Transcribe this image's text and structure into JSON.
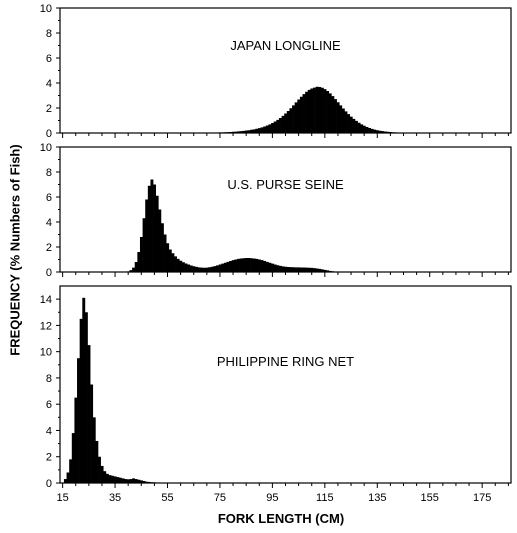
{
  "chart_data": {
    "type": "bar",
    "xlabel": "FORK LENGTH (CM)",
    "ylabel": "FREQUENCY (% Numbers of Fish)",
    "x_ticks": [
      15,
      35,
      55,
      75,
      95,
      115,
      135,
      155,
      175
    ],
    "x_tick_labels": [
      "15",
      "35",
      "55",
      "75",
      "95",
      "115",
      "135",
      "155",
      "175"
    ],
    "xlim": [
      14,
      186
    ],
    "bin_width_cm": 1,
    "panels": [
      {
        "title": "JAPAN LONGLINE",
        "ylim": [
          0,
          10
        ],
        "y_ticks": [
          0,
          2,
          4,
          6,
          8,
          10
        ],
        "y_tick_labels": [
          "0",
          "2",
          "4",
          "6",
          "8",
          "10"
        ],
        "x": [
          70,
          71,
          72,
          73,
          74,
          75,
          76,
          77,
          78,
          79,
          80,
          81,
          82,
          83,
          84,
          85,
          86,
          87,
          88,
          89,
          90,
          91,
          92,
          93,
          94,
          95,
          96,
          97,
          98,
          99,
          100,
          101,
          102,
          103,
          104,
          105,
          106,
          107,
          108,
          109,
          110,
          111,
          112,
          113,
          114,
          115,
          116,
          117,
          118,
          119,
          120,
          121,
          122,
          123,
          124,
          125,
          126,
          127,
          128,
          129,
          130,
          131,
          132,
          133,
          134,
          135,
          136,
          137,
          138,
          139,
          140,
          141,
          142,
          143,
          144,
          145,
          146,
          147,
          148,
          149,
          150,
          151,
          152,
          153,
          154,
          155,
          156,
          157,
          158,
          159,
          160
        ],
        "values": [
          0.02,
          0.02,
          0.03,
          0.03,
          0.04,
          0.05,
          0.05,
          0.06,
          0.07,
          0.08,
          0.1,
          0.11,
          0.13,
          0.15,
          0.17,
          0.2,
          0.22,
          0.26,
          0.29,
          0.34,
          0.39,
          0.45,
          0.52,
          0.6,
          0.69,
          0.8,
          0.92,
          1.05,
          1.2,
          1.37,
          1.56,
          1.76,
          1.98,
          2.21,
          2.45,
          2.68,
          2.9,
          3.11,
          3.3,
          3.45,
          3.56,
          3.63,
          3.7,
          3.68,
          3.62,
          3.51,
          3.36,
          3.17,
          2.95,
          2.71,
          2.46,
          2.21,
          1.96,
          1.73,
          1.51,
          1.31,
          1.13,
          0.97,
          0.82,
          0.69,
          0.58,
          0.48,
          0.4,
          0.33,
          0.27,
          0.22,
          0.18,
          0.15,
          0.12,
          0.1,
          0.08,
          0.06,
          0.05,
          0.04,
          0.03,
          0.03,
          0.02,
          0.02,
          0.02,
          0.01,
          0.01,
          0.01,
          0.01,
          0.01,
          0.01,
          0.01,
          0.01,
          0.01,
          0.01,
          0.01,
          0.01
        ]
      },
      {
        "title": "U.S. PURSE SEINE",
        "ylim": [
          0,
          10
        ],
        "y_ticks": [
          0,
          2,
          4,
          6,
          8,
          10
        ],
        "y_tick_labels": [
          "0",
          "2",
          "4",
          "6",
          "8",
          "10"
        ],
        "x": [
          40,
          41,
          42,
          43,
          44,
          45,
          46,
          47,
          48,
          49,
          50,
          51,
          52,
          53,
          54,
          55,
          56,
          57,
          58,
          59,
          60,
          61,
          62,
          63,
          64,
          65,
          66,
          67,
          68,
          69,
          70,
          71,
          72,
          73,
          74,
          75,
          76,
          77,
          78,
          79,
          80,
          81,
          82,
          83,
          84,
          85,
          86,
          87,
          88,
          89,
          90,
          91,
          92,
          93,
          94,
          95,
          96,
          97,
          98,
          99,
          100,
          101,
          102,
          103,
          104,
          105,
          106,
          107,
          108,
          109,
          110,
          111,
          112,
          113,
          114,
          115,
          116,
          117,
          118,
          119,
          120,
          121,
          122,
          123,
          124,
          125,
          126,
          127,
          128,
          129,
          130
        ],
        "values": [
          0.05,
          0.15,
          0.35,
          0.8,
          1.6,
          2.8,
          4.3,
          5.8,
          6.9,
          7.4,
          7.0,
          6.1,
          5.0,
          3.9,
          3.0,
          2.3,
          1.8,
          1.5,
          1.25,
          1.05,
          0.9,
          0.78,
          0.68,
          0.6,
          0.52,
          0.46,
          0.41,
          0.37,
          0.35,
          0.34,
          0.35,
          0.38,
          0.42,
          0.47,
          0.53,
          0.6,
          0.67,
          0.74,
          0.81,
          0.88,
          0.95,
          1.0,
          1.05,
          1.08,
          1.1,
          1.12,
          1.12,
          1.1,
          1.08,
          1.05,
          1.0,
          0.95,
          0.88,
          0.81,
          0.74,
          0.67,
          0.6,
          0.54,
          0.49,
          0.45,
          0.42,
          0.4,
          0.39,
          0.38,
          0.37,
          0.37,
          0.36,
          0.36,
          0.35,
          0.34,
          0.33,
          0.31,
          0.28,
          0.25,
          0.21,
          0.17,
          0.13,
          0.09,
          0.06,
          0.04,
          0.03,
          0.02,
          0.02,
          0.01,
          0.01,
          0.01,
          0.01,
          0.01,
          0.01,
          0.01,
          0.01
        ]
      },
      {
        "title": "PHILIPPINE RING NET",
        "ylim": [
          0,
          15
        ],
        "y_ticks": [
          0,
          2,
          4,
          6,
          8,
          10,
          12,
          14
        ],
        "y_tick_labels": [
          "0",
          "2",
          "4",
          "6",
          "8",
          "10",
          "12",
          "14"
        ],
        "x": [
          16,
          17,
          18,
          19,
          20,
          21,
          22,
          23,
          24,
          25,
          26,
          27,
          28,
          29,
          30,
          31,
          32,
          33,
          34,
          35,
          36,
          37,
          38,
          39,
          40,
          41,
          42,
          43,
          44,
          45,
          46,
          47,
          48,
          49,
          50,
          51,
          52,
          53,
          54,
          55
        ],
        "values": [
          0.3,
          0.8,
          1.8,
          3.8,
          6.5,
          9.5,
          12.5,
          14.1,
          13.0,
          10.5,
          7.5,
          5.0,
          3.2,
          2.0,
          1.3,
          0.9,
          0.7,
          0.6,
          0.55,
          0.5,
          0.45,
          0.4,
          0.35,
          0.3,
          0.28,
          0.3,
          0.35,
          0.3,
          0.25,
          0.2,
          0.15,
          0.1,
          0.08,
          0.06,
          0.05,
          0.04,
          0.03,
          0.02,
          0.02,
          0.01
        ]
      }
    ]
  }
}
